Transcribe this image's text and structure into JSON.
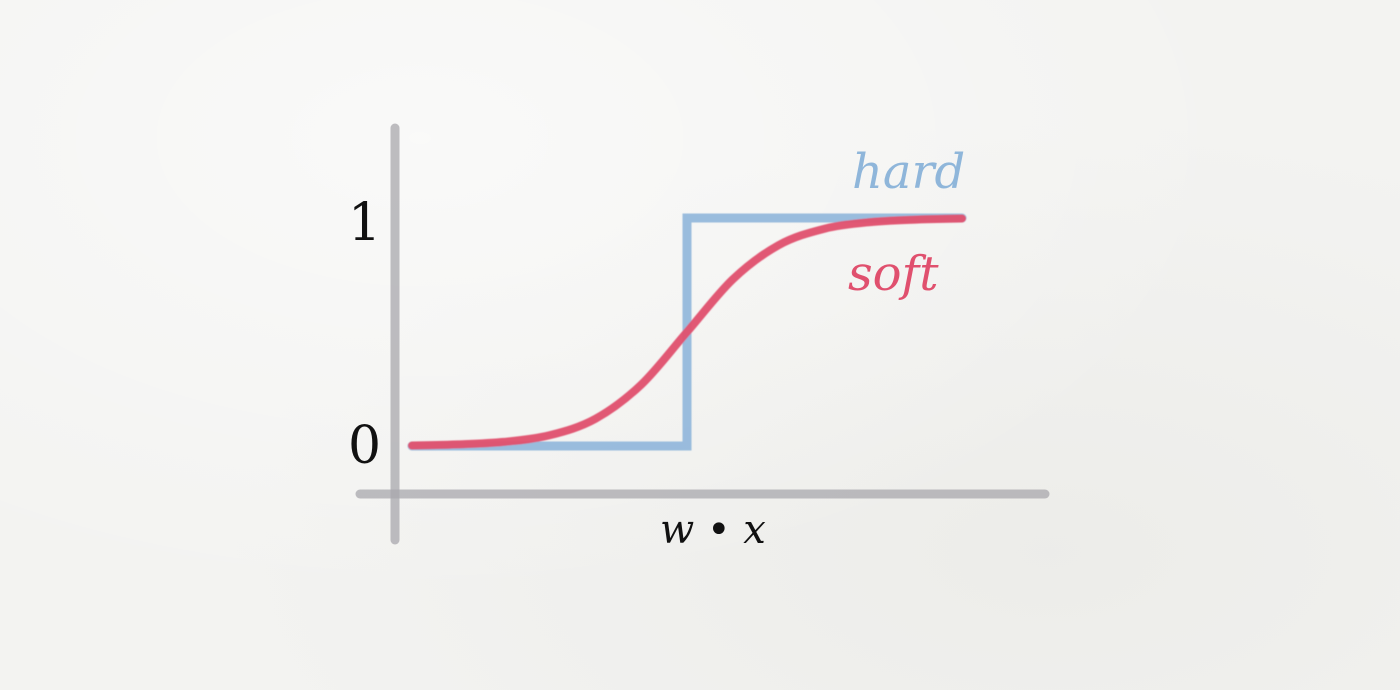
{
  "chart_data": {
    "type": "line",
    "xlabel": "w • x",
    "ylabel": "",
    "ylim": [
      0,
      1
    ],
    "xlim": [
      -6,
      6
    ],
    "y_ticks": [
      "0",
      "1"
    ],
    "grid": false,
    "legend": "inline labels at right end of curves",
    "series": [
      {
        "name": "hard",
        "color": "#8fb6da",
        "x": [
          -6,
          0,
          0,
          6
        ],
        "y": [
          0,
          0,
          1,
          1
        ]
      },
      {
        "name": "soft",
        "color": "#e0506e",
        "x": [
          -6,
          -5,
          -4,
          -3,
          -2,
          -1,
          0,
          1,
          2,
          3,
          4,
          5,
          6
        ],
        "y": [
          0.002,
          0.007,
          0.018,
          0.047,
          0.119,
          0.269,
          0.5,
          0.731,
          0.881,
          0.953,
          0.982,
          0.993,
          0.998
        ]
      }
    ]
  }
}
